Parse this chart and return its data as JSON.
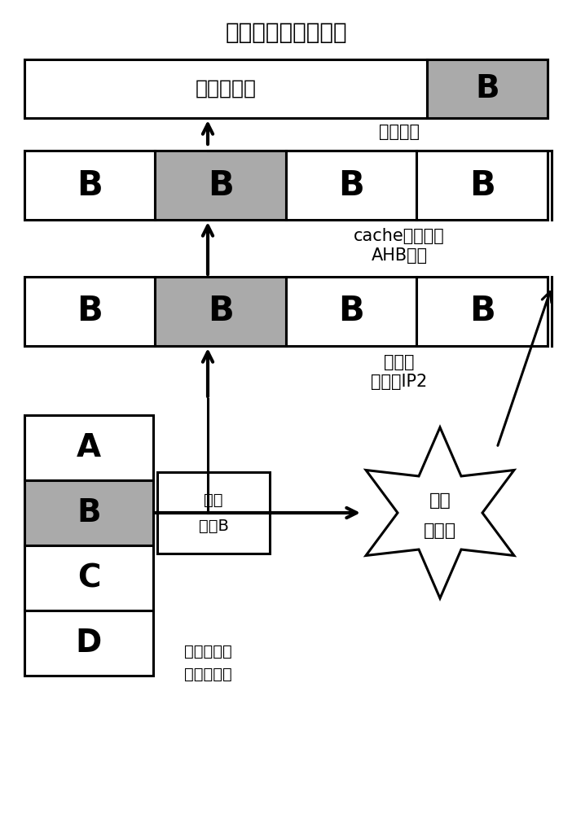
{
  "title": "处理器读回的数据值",
  "gray_color": "#aaaaaa",
  "white_color": "#ffffff",
  "black_color": "#000000",
  "row1_label": "符号位扩展",
  "row1_b_label": "B",
  "row2_labels": [
    "B",
    "B",
    "B",
    "B"
  ],
  "row2_gray_idx": 1,
  "row3_labels": [
    "B",
    "B",
    "B",
    "B"
  ],
  "row3_gray_idx": 1,
  "mem_labels": [
    "A",
    "B",
    "C",
    "D"
  ],
  "mem_gray_idx": 1,
  "label_jiejiezhequ": "字节截取",
  "label_cache": "cache更新数据",
  "label_ahb": "AHB总线",
  "label_cunkuqi": "存储器",
  "label_kongzhiqi": "控制器IP2",
  "label_fangwen": "访问",
  "label_zijie": "字节B",
  "label_waibucunkuqi": "外部存储器",
  "label_zhongdeshuju": "中的数据值",
  "label_shuju": "数据",
  "label_buyizhi": "不一致"
}
